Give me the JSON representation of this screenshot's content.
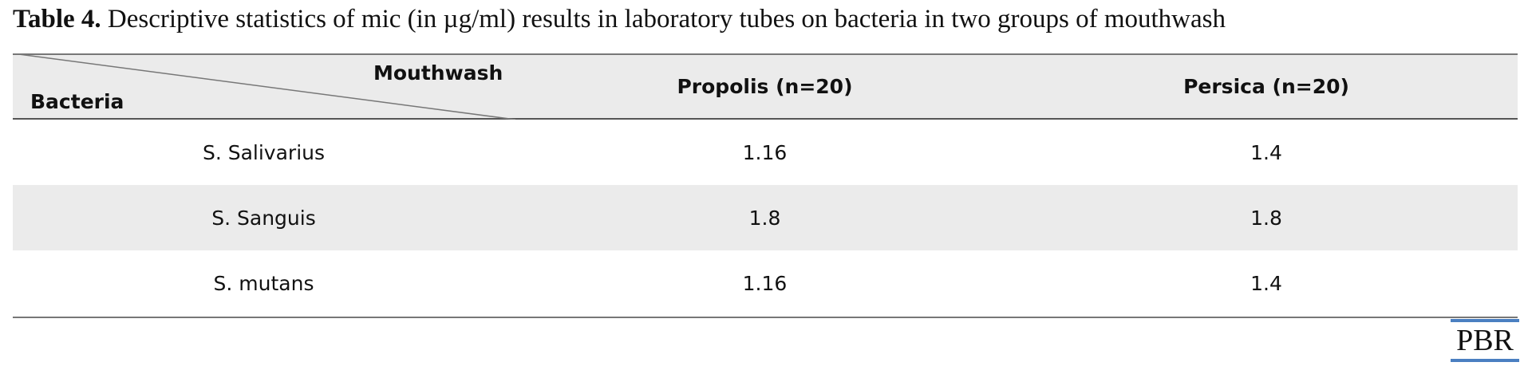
{
  "title": {
    "label": "Table 4.",
    "text": "Descriptive statistics of mic (in µg/ml) results in laboratory tubes on bacteria in two groups of mouthwash"
  },
  "table": {
    "corner": {
      "top": "Mouthwash",
      "bottom": "Bacteria"
    },
    "columns": [
      "Propolis (n=20)",
      "Persica (n=20)"
    ],
    "rows": [
      [
        "S. Salivarius",
        "1.16",
        "1.4"
      ],
      [
        "S. Sanguis",
        "1.8",
        "1.8"
      ],
      [
        "S. mutans",
        "1.16",
        "1.4"
      ]
    ]
  },
  "logo": "PBR"
}
